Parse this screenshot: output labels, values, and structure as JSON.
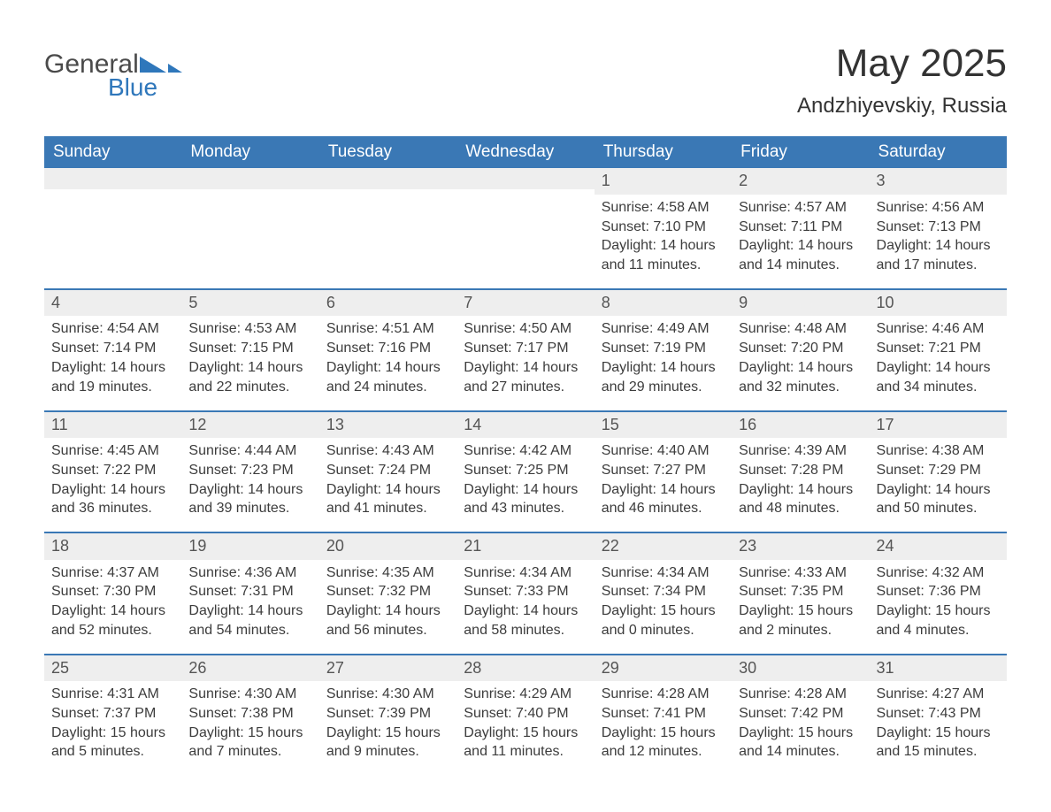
{
  "colors": {
    "header_bg": "#3a78b5",
    "header_text": "#ffffff",
    "daynum_bg": "#eeeeee",
    "daynum_text": "#555555",
    "body_text": "#3c3c3c",
    "rule": "#3a78b5",
    "page_bg": "#ffffff",
    "logo_dark": "#4a4a4a",
    "logo_blue": "#2f77bb"
  },
  "typography": {
    "title_fontsize": 44,
    "subtitle_fontsize": 24,
    "weekday_fontsize": 19,
    "daynum_fontsize": 18,
    "body_fontsize": 16
  },
  "logo": {
    "line1": "General",
    "line2": "Blue"
  },
  "title": "May 2025",
  "subtitle": "Andzhiyevskiy, Russia",
  "weekdays": [
    "Sunday",
    "Monday",
    "Tuesday",
    "Wednesday",
    "Thursday",
    "Friday",
    "Saturday"
  ],
  "weeks": [
    [
      {
        "blank": true
      },
      {
        "blank": true
      },
      {
        "blank": true
      },
      {
        "blank": true
      },
      {
        "day": "1",
        "sunrise": "Sunrise: 4:58 AM",
        "sunset": "Sunset: 7:10 PM",
        "dl1": "Daylight: 14 hours",
        "dl2": "and 11 minutes."
      },
      {
        "day": "2",
        "sunrise": "Sunrise: 4:57 AM",
        "sunset": "Sunset: 7:11 PM",
        "dl1": "Daylight: 14 hours",
        "dl2": "and 14 minutes."
      },
      {
        "day": "3",
        "sunrise": "Sunrise: 4:56 AM",
        "sunset": "Sunset: 7:13 PM",
        "dl1": "Daylight: 14 hours",
        "dl2": "and 17 minutes."
      }
    ],
    [
      {
        "day": "4",
        "sunrise": "Sunrise: 4:54 AM",
        "sunset": "Sunset: 7:14 PM",
        "dl1": "Daylight: 14 hours",
        "dl2": "and 19 minutes."
      },
      {
        "day": "5",
        "sunrise": "Sunrise: 4:53 AM",
        "sunset": "Sunset: 7:15 PM",
        "dl1": "Daylight: 14 hours",
        "dl2": "and 22 minutes."
      },
      {
        "day": "6",
        "sunrise": "Sunrise: 4:51 AM",
        "sunset": "Sunset: 7:16 PM",
        "dl1": "Daylight: 14 hours",
        "dl2": "and 24 minutes."
      },
      {
        "day": "7",
        "sunrise": "Sunrise: 4:50 AM",
        "sunset": "Sunset: 7:17 PM",
        "dl1": "Daylight: 14 hours",
        "dl2": "and 27 minutes."
      },
      {
        "day": "8",
        "sunrise": "Sunrise: 4:49 AM",
        "sunset": "Sunset: 7:19 PM",
        "dl1": "Daylight: 14 hours",
        "dl2": "and 29 minutes."
      },
      {
        "day": "9",
        "sunrise": "Sunrise: 4:48 AM",
        "sunset": "Sunset: 7:20 PM",
        "dl1": "Daylight: 14 hours",
        "dl2": "and 32 minutes."
      },
      {
        "day": "10",
        "sunrise": "Sunrise: 4:46 AM",
        "sunset": "Sunset: 7:21 PM",
        "dl1": "Daylight: 14 hours",
        "dl2": "and 34 minutes."
      }
    ],
    [
      {
        "day": "11",
        "sunrise": "Sunrise: 4:45 AM",
        "sunset": "Sunset: 7:22 PM",
        "dl1": "Daylight: 14 hours",
        "dl2": "and 36 minutes."
      },
      {
        "day": "12",
        "sunrise": "Sunrise: 4:44 AM",
        "sunset": "Sunset: 7:23 PM",
        "dl1": "Daylight: 14 hours",
        "dl2": "and 39 minutes."
      },
      {
        "day": "13",
        "sunrise": "Sunrise: 4:43 AM",
        "sunset": "Sunset: 7:24 PM",
        "dl1": "Daylight: 14 hours",
        "dl2": "and 41 minutes."
      },
      {
        "day": "14",
        "sunrise": "Sunrise: 4:42 AM",
        "sunset": "Sunset: 7:25 PM",
        "dl1": "Daylight: 14 hours",
        "dl2": "and 43 minutes."
      },
      {
        "day": "15",
        "sunrise": "Sunrise: 4:40 AM",
        "sunset": "Sunset: 7:27 PM",
        "dl1": "Daylight: 14 hours",
        "dl2": "and 46 minutes."
      },
      {
        "day": "16",
        "sunrise": "Sunrise: 4:39 AM",
        "sunset": "Sunset: 7:28 PM",
        "dl1": "Daylight: 14 hours",
        "dl2": "and 48 minutes."
      },
      {
        "day": "17",
        "sunrise": "Sunrise: 4:38 AM",
        "sunset": "Sunset: 7:29 PM",
        "dl1": "Daylight: 14 hours",
        "dl2": "and 50 minutes."
      }
    ],
    [
      {
        "day": "18",
        "sunrise": "Sunrise: 4:37 AM",
        "sunset": "Sunset: 7:30 PM",
        "dl1": "Daylight: 14 hours",
        "dl2": "and 52 minutes."
      },
      {
        "day": "19",
        "sunrise": "Sunrise: 4:36 AM",
        "sunset": "Sunset: 7:31 PM",
        "dl1": "Daylight: 14 hours",
        "dl2": "and 54 minutes."
      },
      {
        "day": "20",
        "sunrise": "Sunrise: 4:35 AM",
        "sunset": "Sunset: 7:32 PM",
        "dl1": "Daylight: 14 hours",
        "dl2": "and 56 minutes."
      },
      {
        "day": "21",
        "sunrise": "Sunrise: 4:34 AM",
        "sunset": "Sunset: 7:33 PM",
        "dl1": "Daylight: 14 hours",
        "dl2": "and 58 minutes."
      },
      {
        "day": "22",
        "sunrise": "Sunrise: 4:34 AM",
        "sunset": "Sunset: 7:34 PM",
        "dl1": "Daylight: 15 hours",
        "dl2": "and 0 minutes."
      },
      {
        "day": "23",
        "sunrise": "Sunrise: 4:33 AM",
        "sunset": "Sunset: 7:35 PM",
        "dl1": "Daylight: 15 hours",
        "dl2": "and 2 minutes."
      },
      {
        "day": "24",
        "sunrise": "Sunrise: 4:32 AM",
        "sunset": "Sunset: 7:36 PM",
        "dl1": "Daylight: 15 hours",
        "dl2": "and 4 minutes."
      }
    ],
    [
      {
        "day": "25",
        "sunrise": "Sunrise: 4:31 AM",
        "sunset": "Sunset: 7:37 PM",
        "dl1": "Daylight: 15 hours",
        "dl2": "and 5 minutes."
      },
      {
        "day": "26",
        "sunrise": "Sunrise: 4:30 AM",
        "sunset": "Sunset: 7:38 PM",
        "dl1": "Daylight: 15 hours",
        "dl2": "and 7 minutes."
      },
      {
        "day": "27",
        "sunrise": "Sunrise: 4:30 AM",
        "sunset": "Sunset: 7:39 PM",
        "dl1": "Daylight: 15 hours",
        "dl2": "and 9 minutes."
      },
      {
        "day": "28",
        "sunrise": "Sunrise: 4:29 AM",
        "sunset": "Sunset: 7:40 PM",
        "dl1": "Daylight: 15 hours",
        "dl2": "and 11 minutes."
      },
      {
        "day": "29",
        "sunrise": "Sunrise: 4:28 AM",
        "sunset": "Sunset: 7:41 PM",
        "dl1": "Daylight: 15 hours",
        "dl2": "and 12 minutes."
      },
      {
        "day": "30",
        "sunrise": "Sunrise: 4:28 AM",
        "sunset": "Sunset: 7:42 PM",
        "dl1": "Daylight: 15 hours",
        "dl2": "and 14 minutes."
      },
      {
        "day": "31",
        "sunrise": "Sunrise: 4:27 AM",
        "sunset": "Sunset: 7:43 PM",
        "dl1": "Daylight: 15 hours",
        "dl2": "and 15 minutes."
      }
    ]
  ]
}
